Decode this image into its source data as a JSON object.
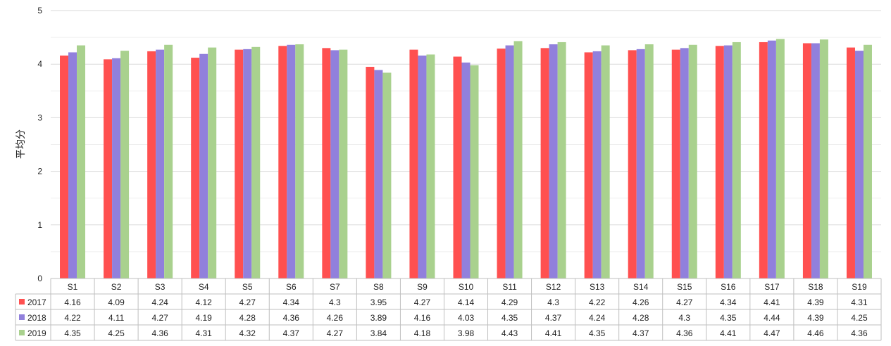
{
  "chart_data": {
    "type": "bar",
    "ylabel": "平均分",
    "ylim": [
      0,
      5
    ],
    "yticks": [
      0,
      1,
      2,
      3,
      4,
      5
    ],
    "grid": true,
    "legend": "data-table-left",
    "categories": [
      "S1",
      "S2",
      "S3",
      "S4",
      "S5",
      "S6",
      "S7",
      "S8",
      "S9",
      "S10",
      "S11",
      "S12",
      "S13",
      "S14",
      "S15",
      "S16",
      "S17",
      "S18",
      "S19"
    ],
    "series": [
      {
        "name": "2017",
        "color": "#ff5050",
        "values": [
          4.16,
          4.09,
          4.24,
          4.12,
          4.27,
          4.34,
          4.3,
          3.95,
          4.27,
          4.14,
          4.29,
          4.3,
          4.22,
          4.26,
          4.27,
          4.34,
          4.41,
          4.39,
          4.31
        ]
      },
      {
        "name": "2018",
        "color": "#9180dc",
        "values": [
          4.22,
          4.11,
          4.27,
          4.19,
          4.28,
          4.36,
          4.26,
          3.89,
          4.16,
          4.03,
          4.35,
          4.37,
          4.24,
          4.28,
          4.3,
          4.35,
          4.44,
          4.39,
          4.25
        ]
      },
      {
        "name": "2019",
        "color": "#a9d18e",
        "values": [
          4.35,
          4.25,
          4.36,
          4.31,
          4.32,
          4.37,
          4.27,
          3.84,
          4.18,
          3.98,
          4.43,
          4.41,
          4.35,
          4.37,
          4.36,
          4.41,
          4.47,
          4.46,
          4.36
        ]
      }
    ]
  }
}
